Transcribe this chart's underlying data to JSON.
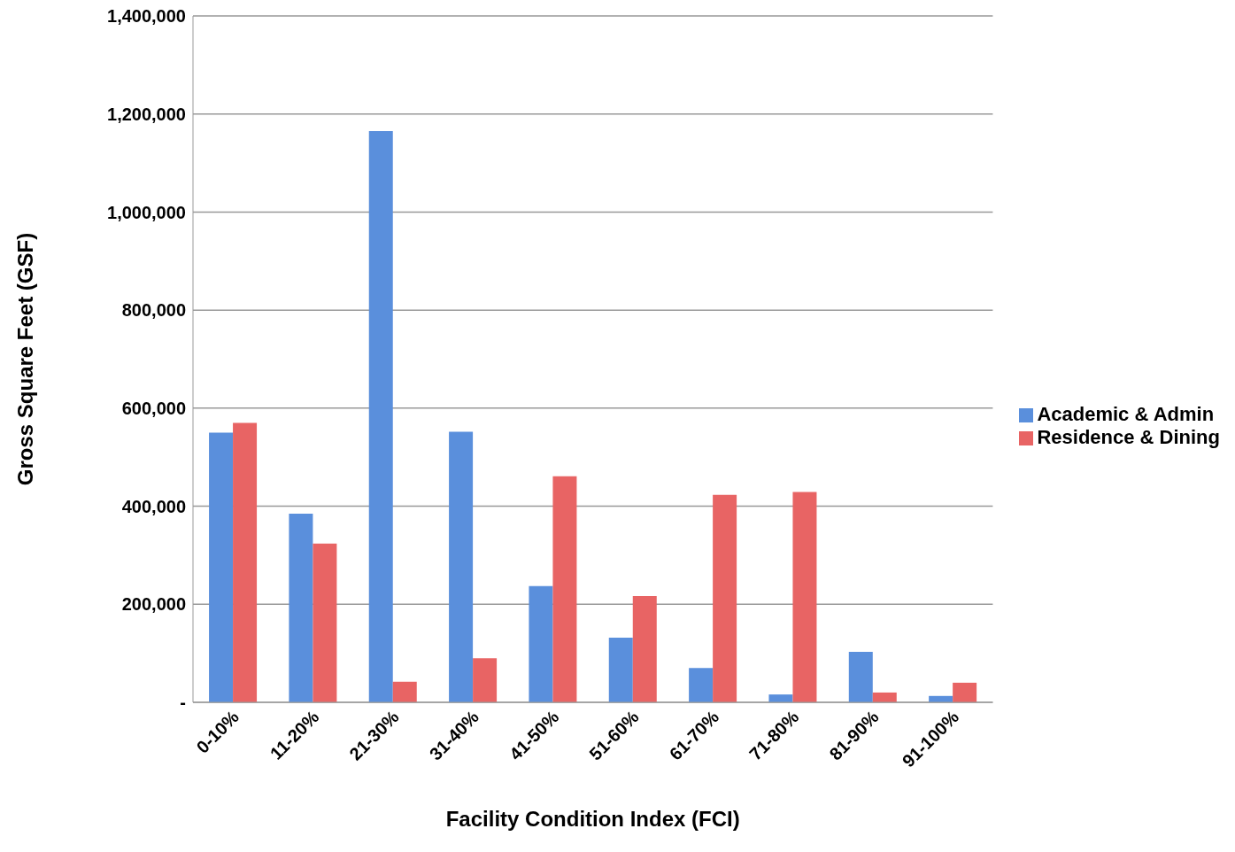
{
  "chart_data": {
    "type": "bar",
    "xlabel": "Facility Condition Index (FCI)",
    "ylabel": "Gross Square Feet (GSF)",
    "categories": [
      "0-10%",
      "11-20%",
      "21-30%",
      "31-40%",
      "41-50%",
      "51-60%",
      "61-70%",
      "71-80%",
      "81-90%",
      "91-100%"
    ],
    "series": [
      {
        "name": "Academic & Admin",
        "color": "#5a8fdc",
        "values": [
          550000,
          385000,
          1165000,
          552000,
          237000,
          132000,
          70000,
          16000,
          103000,
          13000
        ]
      },
      {
        "name": "Residence & Dining",
        "color": "#e86464",
        "values": [
          570000,
          324000,
          42000,
          90000,
          461000,
          217000,
          423000,
          429000,
          20000,
          40000
        ]
      }
    ],
    "ylim": [
      0,
      1400000
    ],
    "yticks": [
      {
        "value": 0,
        "label": "-"
      },
      {
        "value": 200000,
        "label": "200,000"
      },
      {
        "value": 400000,
        "label": "400,000"
      },
      {
        "value": 600000,
        "label": "600,000"
      },
      {
        "value": 800000,
        "label": "800,000"
      },
      {
        "value": 1000000,
        "label": "1,000,000"
      },
      {
        "value": 1200000,
        "label": "1,200,000"
      },
      {
        "value": 1400000,
        "label": "1,400,000"
      }
    ],
    "grid": "y",
    "legend": "right"
  }
}
